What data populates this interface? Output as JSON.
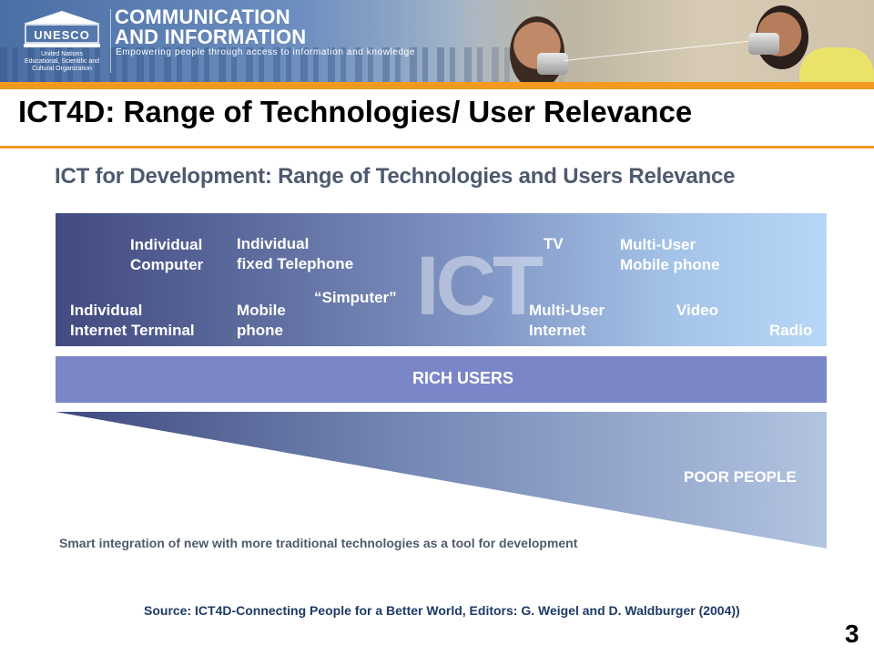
{
  "banner": {
    "logo_text": "UNESCO",
    "logo_subtext": [
      "United Nations",
      "Educational, Scientific and",
      "Cultural Organization"
    ],
    "brand_line1": "COMMUNICATION",
    "brand_line2": "AND INFORMATION",
    "tagline": "Empowering people through access to information and knowledge"
  },
  "slide": {
    "title": "ICT4D: Range of Technologies/ User Relevance",
    "page_number": "3",
    "source": "Source: ICT4D-Connecting People for a Better World, Editors: G. Weigel and D. Waldburger (2004))"
  },
  "figure": {
    "title": "ICT for Development: Range of Technologies and Users Relevance",
    "ict_watermark": "ICT",
    "technologies": {
      "individual_computer": "Individual\nComputer",
      "individual_fixed_telephone": "Individual\nfixed Telephone",
      "tv": "TV",
      "multi_user_mobile": "Multi-User\nMobile phone",
      "individual_internet_terminal": "Individual\nInternet Terminal",
      "mobile_phone": "Mobile\nphone",
      "simputer": "“Simputer”",
      "multi_user_internet": "Multi-User\nInternet",
      "video": "Video",
      "radio": "Radio"
    },
    "rich_users": "RICH USERS",
    "poor_people": "POOR PEOPLE",
    "caption": "Smart integration of new with more traditional technologies as a tool for development"
  },
  "colors": {
    "accent_orange": "#f39a1f",
    "ict_band_start": "#424a80",
    "ict_band_end": "#b7d7f7",
    "rich_band": "#7a86c8"
  }
}
